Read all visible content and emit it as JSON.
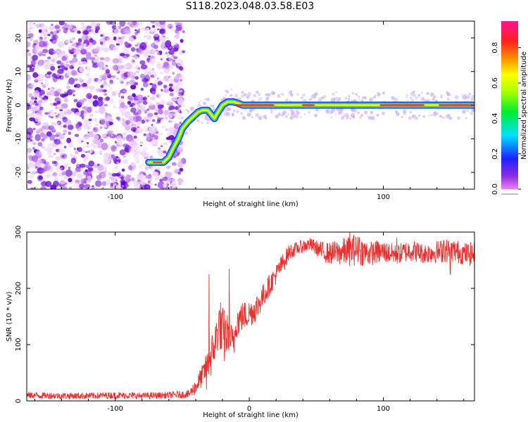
{
  "title": "S118.2023.048.03.58.E03",
  "colors": {
    "snr_line": "#e8302e",
    "ridge_core": "#e8302e",
    "axis": "#000000",
    "background": "#ffffff"
  },
  "chart_data": [
    {
      "type": "heatmap",
      "xlabel": "Height of straight line (km)",
      "ylabel": "Frequency (Hz)",
      "xlim": [
        -166,
        168
      ],
      "ylim": [
        -25,
        25
      ],
      "x_ticks": [
        -100,
        0,
        100
      ],
      "x_tick_labels": [
        "-100",
        "",
        "100"
      ],
      "y_ticks": [
        -20,
        -10,
        0,
        10,
        20
      ],
      "y_tick_labels": [
        "-20",
        "-10",
        "0",
        "10",
        "20"
      ],
      "colorbar": {
        "label": "Normalized spectral amplitude",
        "range": [
          0.0,
          0.95
        ],
        "ticks": [
          0.0,
          0.2,
          0.4,
          0.6,
          0.8
        ],
        "tick_labels": [
          "0.0",
          "0.2",
          "0.4",
          "0.6",
          "0.8"
        ],
        "colormap": "rainbow (magenta-blue-cyan-green-yellow-red-pink)"
      },
      "noise_region": {
        "x_range": [
          -166,
          -55
        ],
        "y_range": [
          -25,
          25
        ]
      },
      "ridge": {
        "x": [
          -75,
          -70,
          -64,
          -60,
          -57,
          -53,
          -50,
          -46,
          -42,
          -38,
          -35,
          -31,
          -28,
          -26,
          -24,
          -20,
          -16,
          -12,
          -8,
          -5,
          0,
          20,
          40,
          60,
          80,
          100,
          120,
          168
        ],
        "y": [
          -17,
          -17,
          -17,
          -15.5,
          -13,
          -10,
          -7,
          -5,
          -3.5,
          -2,
          -1.5,
          -1.5,
          -3,
          -4,
          -2.5,
          0,
          1,
          1,
          0.5,
          0,
          0,
          0,
          0,
          0,
          0,
          0,
          0,
          0
        ]
      },
      "grid": false
    },
    {
      "type": "line",
      "xlabel": "Height of straight line (km)",
      "ylabel": "SNR (10 * v/v)",
      "xlim": [
        -166,
        168
      ],
      "ylim": [
        0,
        300
      ],
      "x_ticks": [
        -100,
        0,
        100
      ],
      "x_tick_labels": [
        "-100",
        "0",
        "100"
      ],
      "y_ticks": [
        0,
        100,
        200,
        300
      ],
      "y_tick_labels": [
        "0",
        "100",
        "200",
        "300"
      ],
      "series": [
        {
          "x": [
            -166,
            -140,
            -120,
            -100,
            -80,
            -60,
            -45,
            -40,
            -35,
            -30,
            -28,
            -25,
            -22,
            -20,
            -15,
            -12,
            -10,
            -5,
            0,
            5,
            10,
            15,
            20,
            25,
            30,
            35,
            40,
            45,
            50,
            55,
            60,
            70,
            80,
            90,
            100,
            110,
            120,
            130,
            140,
            150,
            160,
            168
          ],
          "values": [
            10,
            9,
            9,
            10,
            9,
            10,
            12,
            25,
            45,
            70,
            80,
            110,
            140,
            110,
            120,
            95,
            140,
            150,
            155,
            165,
            185,
            205,
            225,
            245,
            265,
            270,
            275,
            278,
            272,
            265,
            262,
            265,
            268,
            262,
            265,
            260,
            268,
            262,
            265,
            268,
            262,
            260
          ],
          "noise_amplitude": [
            6,
            6,
            6,
            6,
            6,
            6,
            7,
            15,
            20,
            28,
            40,
            35,
            45,
            60,
            30,
            35,
            30,
            28,
            25,
            25,
            22,
            20,
            18,
            18,
            15,
            12,
            12,
            12,
            14,
            18,
            20,
            25,
            28,
            22,
            20,
            18,
            20,
            18,
            20,
            22,
            20,
            22
          ],
          "spikes": [
            [
              -30,
              225
            ],
            [
              -32,
              20
            ],
            [
              -15,
              235
            ],
            [
              75,
              300
            ],
            [
              78,
              295
            ],
            [
              82,
              290
            ],
            [
              95,
              285
            ],
            [
              110,
              290
            ],
            [
              145,
              285
            ],
            [
              150,
              225
            ],
            [
              168,
              230
            ]
          ]
        }
      ],
      "grid": false
    }
  ]
}
